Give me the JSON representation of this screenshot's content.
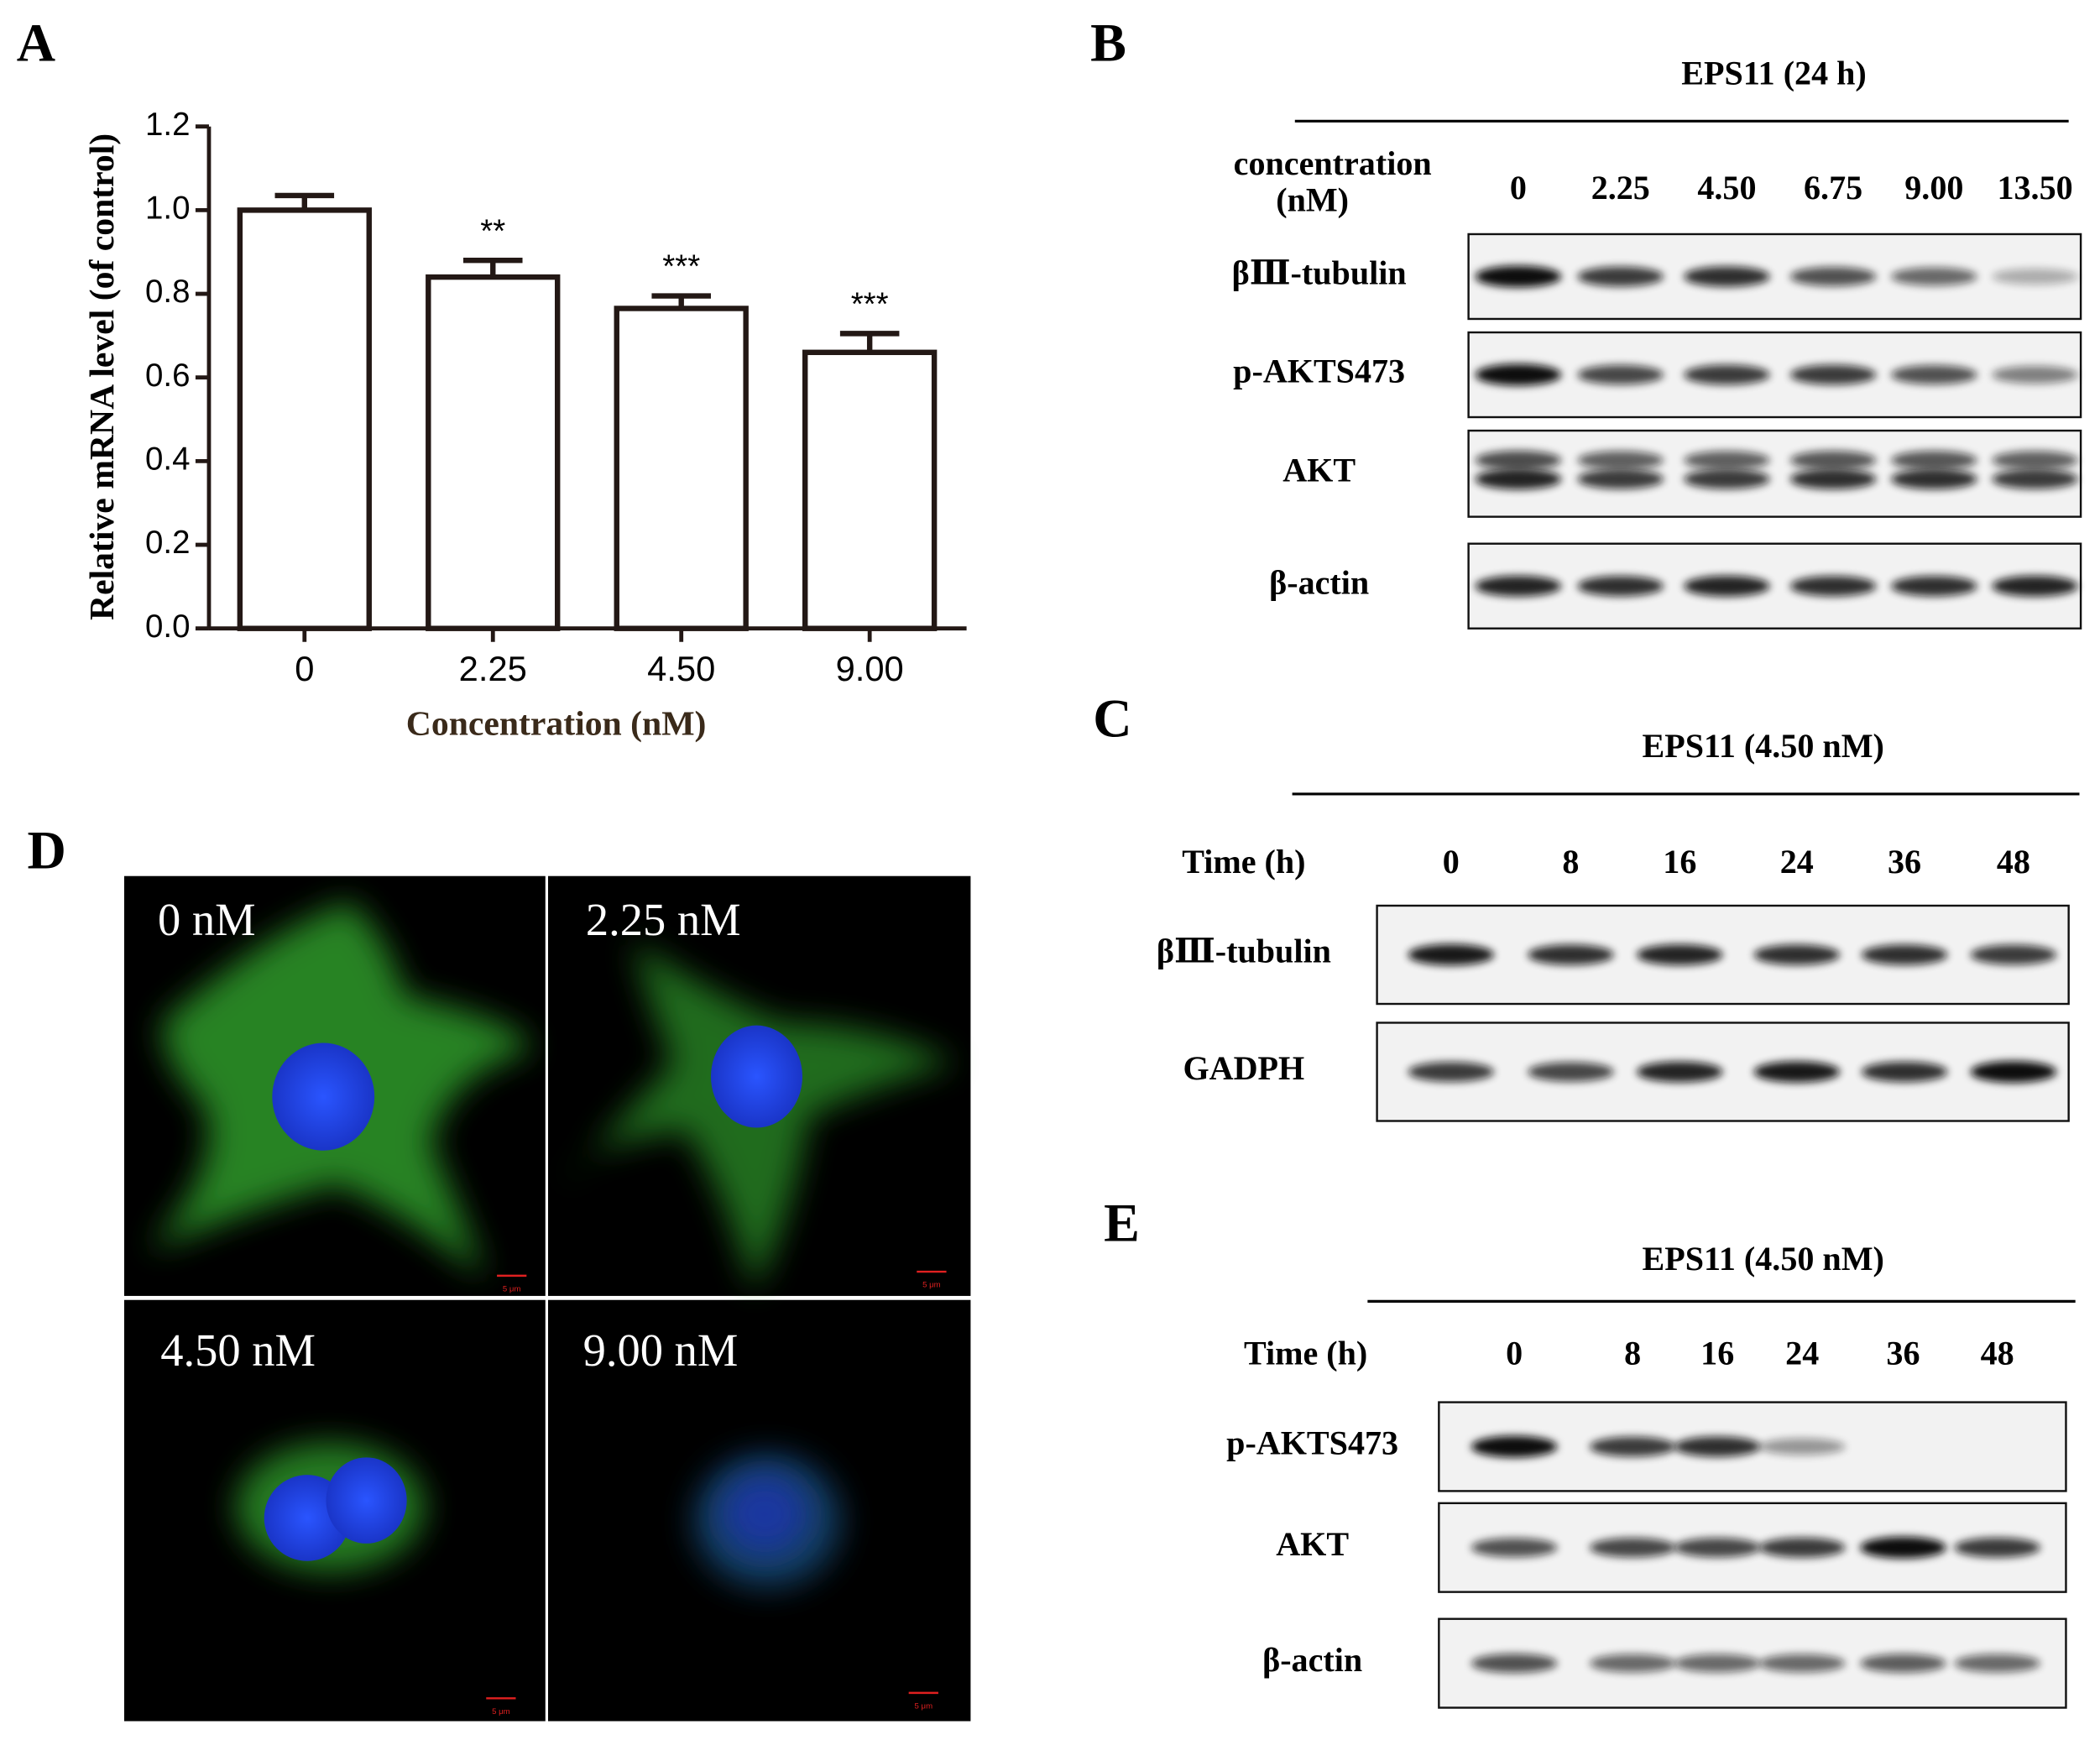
{
  "chart_data": {
    "type": "bar",
    "panel_label": "A",
    "y_label": "Relative mRNA level (of control)",
    "x_label": "Concentration (nM)",
    "categories": [
      "0",
      "2.25",
      "4.50",
      "9.00"
    ],
    "values": [
      1.0,
      0.84,
      0.765,
      0.66
    ],
    "errors": [
      0.035,
      0.04,
      0.03,
      0.045
    ],
    "annotations": [
      null,
      "**",
      "***",
      "***"
    ],
    "color": "#ffffff",
    "edge_color": "#231815",
    "ylim": [
      0,
      1.2
    ],
    "yticks": [
      {
        "value": 0,
        "label": "0.0"
      },
      {
        "value": 0.2,
        "label": "0.2"
      },
      {
        "value": 0.4,
        "label": "0.4"
      },
      {
        "value": 0.6,
        "label": "0.6"
      },
      {
        "value": 0.8,
        "label": "0.8"
      },
      {
        "value": 1.0,
        "label": "1.0"
      },
      {
        "value": 1.2,
        "label": "1.2"
      }
    ]
  },
  "panel_b": {
    "label": "B",
    "title": "EPS11 (24 h)",
    "lane_header": [
      "concentration",
      "(nM)"
    ],
    "lanes": [
      "0",
      "2.25",
      "4.50",
      "6.75",
      "9.00",
      "13.50"
    ],
    "rows": [
      "βⅢ-tubulin",
      "p-AKTS473",
      "AKT",
      "β-actin"
    ]
  },
  "panel_c": {
    "label": "C",
    "title": "EPS11 (4.50 nM)",
    "lane_header": "Time (h)",
    "lanes": [
      "0",
      "8",
      "16",
      "24",
      "36",
      "48"
    ],
    "rows": [
      "βⅢ-tubulin",
      "GADPH"
    ]
  },
  "panel_d": {
    "label": "D",
    "images": [
      "0 nM",
      "2.25 nM",
      "4.50 nM",
      "9.00 nM"
    ],
    "scale_bar": "5 μm"
  },
  "panel_e": {
    "label": "E",
    "title": "EPS11 (4.50 nM)",
    "lane_header": "Time (h)",
    "lanes": [
      "0",
      "8",
      "16",
      "24",
      "36",
      "48"
    ],
    "rows": [
      "p-AKTS473",
      "AKT",
      "β-actin"
    ]
  }
}
